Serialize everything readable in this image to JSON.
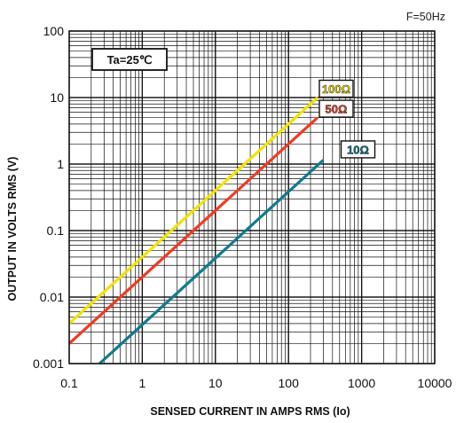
{
  "chart_data": {
    "type": "line",
    "xlabel": "SENSED CURRENT IN AMPS RMS (Io)",
    "ylabel": "OUTPUT  IN  VOLTS RMS (V)",
    "x_scale": "log",
    "y_scale": "log",
    "xlim": [
      0.1,
      10000
    ],
    "ylim": [
      0.001,
      100
    ],
    "x_ticks": [
      "0.1",
      "1",
      "10",
      "100",
      "1000",
      "10000"
    ],
    "y_ticks": [
      "0.001",
      "0.01",
      "0.1",
      "1",
      "10",
      "100"
    ],
    "grid": true,
    "frequency_note": "F=50Hz",
    "annotation": "Ta=25℃",
    "series": [
      {
        "name": "100Ω",
        "color": "#f2e200",
        "x": [
          0.1,
          250
        ],
        "y": [
          0.004,
          10
        ]
      },
      {
        "name": "50Ω",
        "color": "#ee3b24",
        "x": [
          0.1,
          250
        ],
        "y": [
          0.002,
          5
        ]
      },
      {
        "name": "10Ω",
        "color": "#117a8e",
        "x": [
          0.26,
          300
        ],
        "y": [
          0.001,
          1.15
        ]
      }
    ]
  }
}
